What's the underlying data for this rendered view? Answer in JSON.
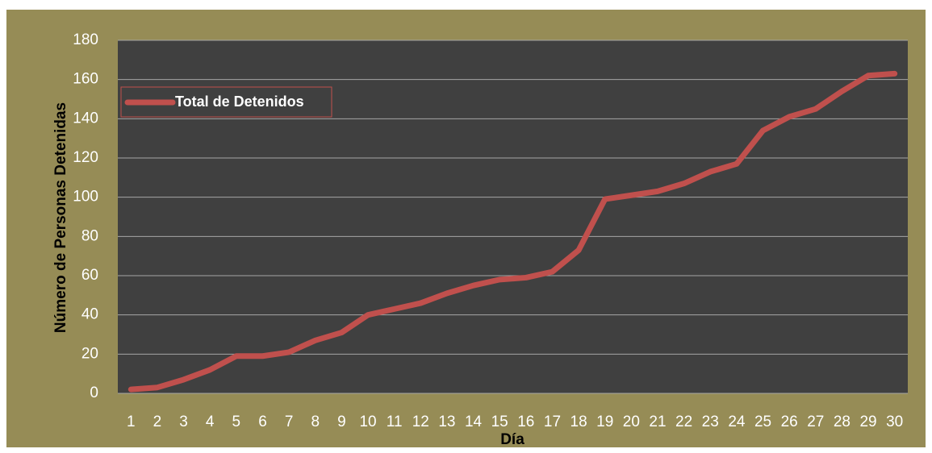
{
  "chart_data": {
    "type": "line",
    "x_label": "Día",
    "y_label": "Número de Personas Detenidas",
    "categories": [
      "1",
      "2",
      "3",
      "4",
      "5",
      "6",
      "7",
      "8",
      "9",
      "10",
      "11",
      "12",
      "13",
      "14",
      "15",
      "16",
      "17",
      "18",
      "19",
      "20",
      "21",
      "22",
      "23",
      "24",
      "25",
      "26",
      "27",
      "28",
      "29",
      "30"
    ],
    "series": [
      {
        "name": "Total de Detenidos",
        "color": "#c0504d",
        "values": [
          2,
          3,
          7,
          12,
          19,
          19,
          21,
          27,
          31,
          40,
          43,
          46,
          51,
          55,
          58,
          59,
          62,
          73,
          99,
          101,
          103,
          107,
          113,
          117,
          134,
          141,
          145,
          154,
          162,
          163
        ]
      }
    ],
    "ylim": [
      0,
      180
    ],
    "yticks": [
      0,
      20,
      40,
      60,
      80,
      100,
      120,
      140,
      160,
      180
    ],
    "grid": true,
    "legend": "upper-left"
  }
}
